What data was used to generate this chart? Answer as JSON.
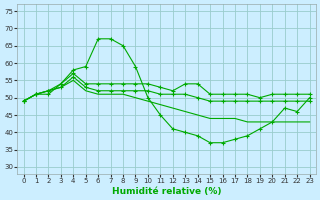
{
  "xlabel": "Humidité relative (%)",
  "bg_color": "#cceeff",
  "grid_color": "#99cccc",
  "line_color": "#00aa00",
  "xlim": [
    -0.5,
    23.5
  ],
  "ylim": [
    28,
    77
  ],
  "yticks": [
    30,
    35,
    40,
    45,
    50,
    55,
    60,
    65,
    70,
    75
  ],
  "xticks": [
    0,
    1,
    2,
    3,
    4,
    5,
    6,
    7,
    8,
    9,
    10,
    11,
    12,
    13,
    14,
    15,
    16,
    17,
    18,
    19,
    20,
    21,
    22,
    23
  ],
  "series": [
    [
      49,
      51,
      51,
      54,
      58,
      59,
      67,
      67,
      65,
      59,
      50,
      45,
      41,
      40,
      39,
      37,
      37,
      38,
      39,
      41,
      43,
      47,
      46,
      50
    ],
    [
      49,
      51,
      52,
      54,
      57,
      54,
      54,
      54,
      54,
      54,
      54,
      53,
      52,
      54,
      54,
      51,
      51,
      51,
      51,
      50,
      51,
      51,
      51,
      51
    ],
    [
      49,
      51,
      52,
      53,
      56,
      53,
      52,
      52,
      52,
      52,
      52,
      51,
      51,
      51,
      50,
      49,
      49,
      49,
      49,
      49,
      49,
      49,
      49,
      49
    ],
    [
      49,
      51,
      52,
      53,
      55,
      52,
      51,
      51,
      51,
      50,
      49,
      48,
      47,
      46,
      45,
      44,
      44,
      44,
      43,
      43,
      43,
      43,
      43,
      43
    ]
  ],
  "series_markers": [
    true,
    true,
    true,
    false
  ],
  "xlabel_color": "#00aa00",
  "tick_fontsize": 5,
  "xlabel_fontsize": 6.5
}
